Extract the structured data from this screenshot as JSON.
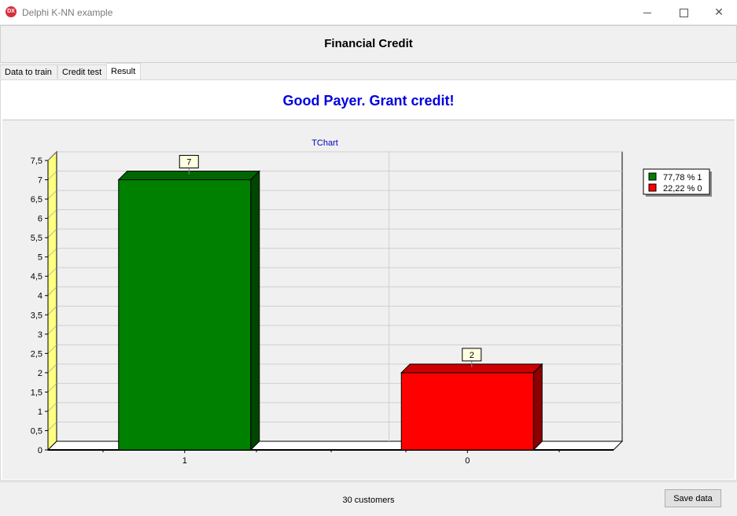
{
  "window": {
    "title": "Delphi K-NN example",
    "icon_label": "DX",
    "controls": [
      "minimize-icon",
      "maximize-icon",
      "close-icon"
    ]
  },
  "header": {
    "title": "Financial Credit"
  },
  "tabs": [
    {
      "label": "Data to train",
      "active": false
    },
    {
      "label": "Credit test",
      "active": false
    },
    {
      "label": "Result",
      "active": true
    }
  ],
  "result": {
    "message": "Good Payer. Grant credit!",
    "color": "#0000e0"
  },
  "chart_data": {
    "type": "bar",
    "title": "TChart",
    "categories": [
      "1",
      "0"
    ],
    "values": [
      7,
      2
    ],
    "colors": [
      "#008000",
      "#ff0000"
    ],
    "data_labels": [
      "7",
      "2"
    ],
    "ylim": [
      0,
      7.5
    ],
    "yticks": [
      "0",
      "0,5",
      "1",
      "1,5",
      "2",
      "2,5",
      "3",
      "3,5",
      "4",
      "4,5",
      "5",
      "5,5",
      "6",
      "6,5",
      "7",
      "7,5"
    ],
    "grid": true,
    "three_d": true,
    "legend_position": "right",
    "legend": [
      {
        "label": "77,78 % 1",
        "color": "#008000"
      },
      {
        "label": "22,22 % 0",
        "color": "#ff0000"
      }
    ]
  },
  "status": {
    "text": "30 customers"
  },
  "buttons": {
    "save_label": "Save data"
  }
}
